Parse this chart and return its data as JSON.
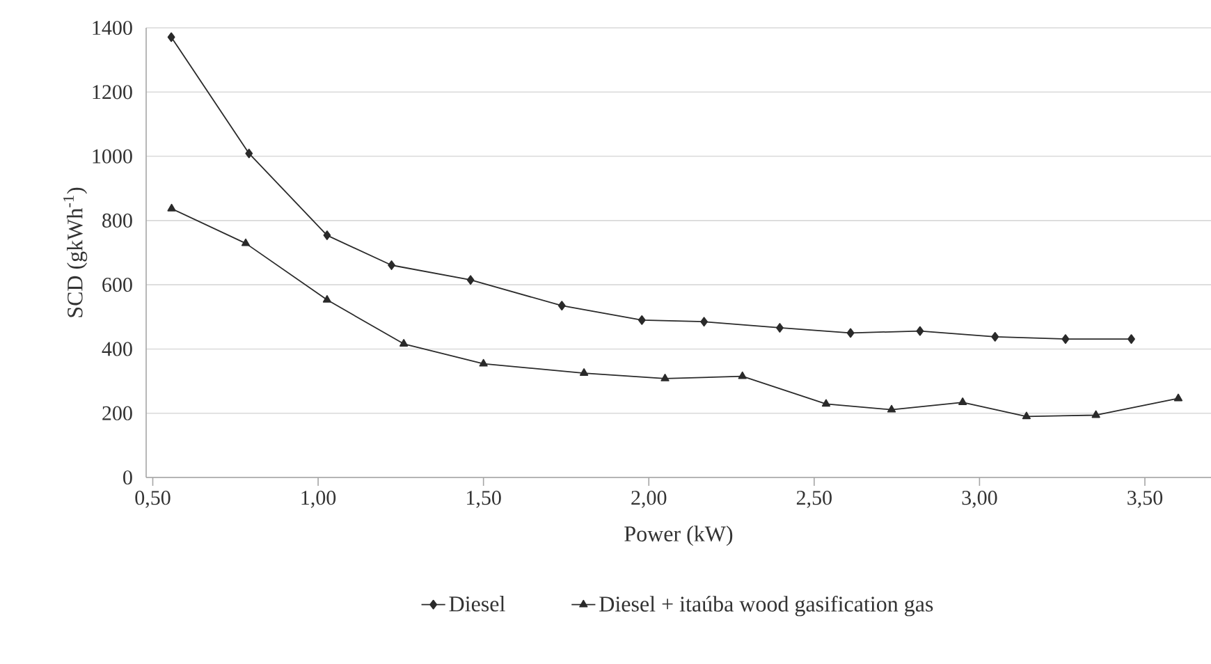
{
  "chart_data": {
    "type": "line",
    "xlabel": "Power (kW)",
    "ylabel": "SCD (gkWh$^{-1}$)",
    "xlim": [
      0.48,
      3.7
    ],
    "ylim": [
      0,
      1400
    ],
    "xticks": [
      {
        "value": 0.5,
        "label": "0,50"
      },
      {
        "value": 1.0,
        "label": "1,00"
      },
      {
        "value": 1.5,
        "label": "1,50"
      },
      {
        "value": 2.0,
        "label": "2,00"
      },
      {
        "value": 2.5,
        "label": "2,50"
      },
      {
        "value": 3.0,
        "label": "3,00"
      },
      {
        "value": 3.5,
        "label": "3,50"
      }
    ],
    "yticks": [
      0,
      200,
      400,
      600,
      800,
      1000,
      1200,
      1400
    ],
    "grid": "y",
    "legend": "bottom",
    "line_style": "solid",
    "series": [
      {
        "name": "Diesel",
        "color": "#2a2a2a",
        "marker": "diamond",
        "x": [
          0.556,
          0.791,
          1.027,
          1.222,
          1.461,
          1.737,
          1.979,
          2.167,
          2.396,
          2.61,
          2.82,
          3.047,
          3.26,
          3.459
        ],
        "values": [
          1371,
          1009,
          754,
          661,
          615,
          535,
          490,
          485,
          466,
          450,
          456,
          438,
          431,
          431
        ]
      },
      {
        "name": "Diesel + itaúba wood gasification gas",
        "color": "#2a2a2a",
        "marker": "triangle",
        "x": [
          0.557,
          0.781,
          1.027,
          1.259,
          1.5,
          1.804,
          2.049,
          2.283,
          2.536,
          2.734,
          2.949,
          3.142,
          3.352,
          3.601
        ],
        "values": [
          837,
          729,
          553,
          416,
          354,
          325,
          308,
          315,
          229,
          211,
          234,
          190,
          194,
          246
        ]
      }
    ]
  }
}
